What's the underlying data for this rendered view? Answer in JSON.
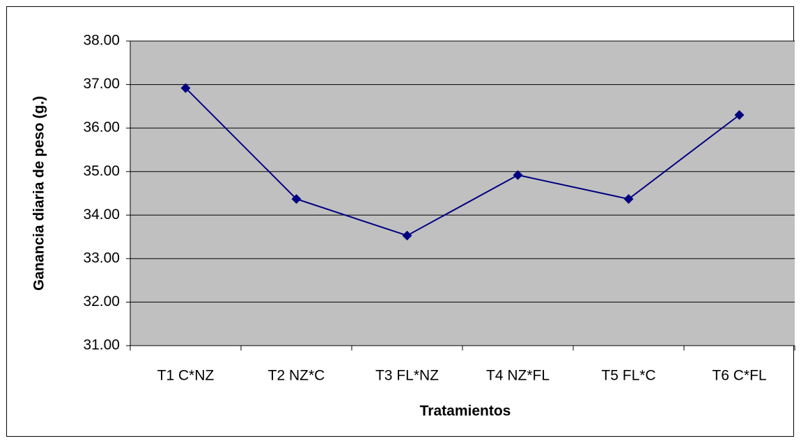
{
  "chart_data": {
    "type": "line",
    "xlabel": "Tratamientos",
    "ylabel": "Ganancia diaria de peso (g.)",
    "categories": [
      "T1 C*NZ",
      "T2 NZ*C",
      "T3 FL*NZ",
      "T4 NZ*FL",
      "T5 FL*C",
      "T6 C*FL"
    ],
    "series": [
      {
        "color": "#000080",
        "values": [
          36.92,
          34.37,
          33.53,
          34.92,
          34.37,
          36.3
        ]
      }
    ],
    "ylim": [
      31,
      38
    ],
    "yticks": [
      {
        "value": 31,
        "label": "31.00"
      },
      {
        "value": 32,
        "label": "32.00"
      },
      {
        "value": 33,
        "label": "33.00"
      },
      {
        "value": 34,
        "label": "34.00"
      },
      {
        "value": 35,
        "label": "35.00"
      },
      {
        "value": 36,
        "label": "36.00"
      },
      {
        "value": 37,
        "label": "37.00"
      },
      {
        "value": 38,
        "label": "38.00"
      }
    ],
    "grid": true,
    "plot_background": "#c0c0c0"
  }
}
